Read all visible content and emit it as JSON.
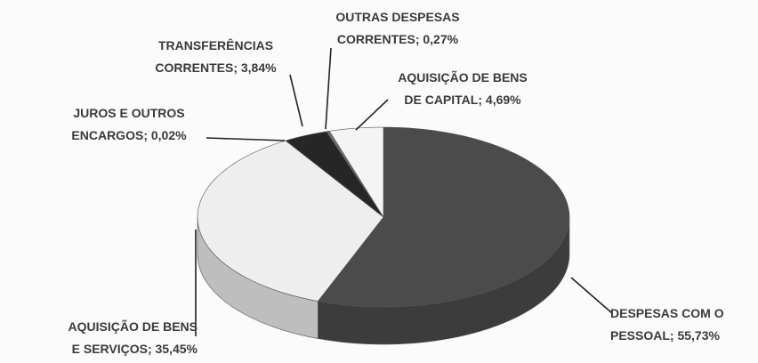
{
  "chart_data": {
    "type": "pie3d",
    "categories": [
      "DESPESAS COM O PESSOAL",
      "AQUISIÇÃO DE BENS E SERVIÇOS",
      "JUROS E OUTROS ENCARGOS",
      "TRANSFERÊNCIAS CORRENTES",
      "OUTRAS DESPESAS CORRENTES",
      "AQUISIÇÃO DE BENS DE CAPITAL"
    ],
    "values": [
      55.73,
      35.45,
      0.02,
      3.84,
      0.27,
      4.69
    ],
    "value_labels": [
      "55,73%",
      "35,45%",
      "0,02%",
      "3,84%",
      "0,27%",
      "4,69%"
    ],
    "label_separator": ";",
    "colors": [
      "#4b4b4b",
      "#eeeeee",
      "#bdbdbd",
      "#262626",
      "#6a6a6a",
      "#f4f4f4"
    ]
  }
}
